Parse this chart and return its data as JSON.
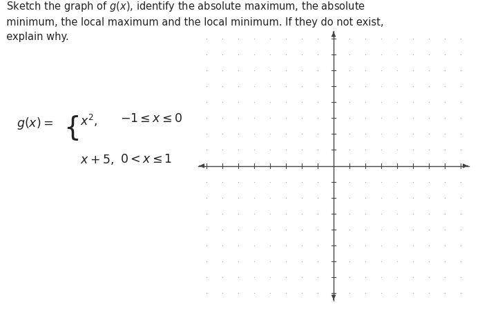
{
  "background_color": "#ffffff",
  "grid_dot_color": "#b0b0b0",
  "axis_color": "#444444",
  "x_range": [
    -8,
    8
  ],
  "y_range": [
    -8,
    8
  ],
  "fig_width": 6.95,
  "fig_height": 4.67,
  "text_fontsize": 10.5,
  "formula_fontsize": 12.5
}
